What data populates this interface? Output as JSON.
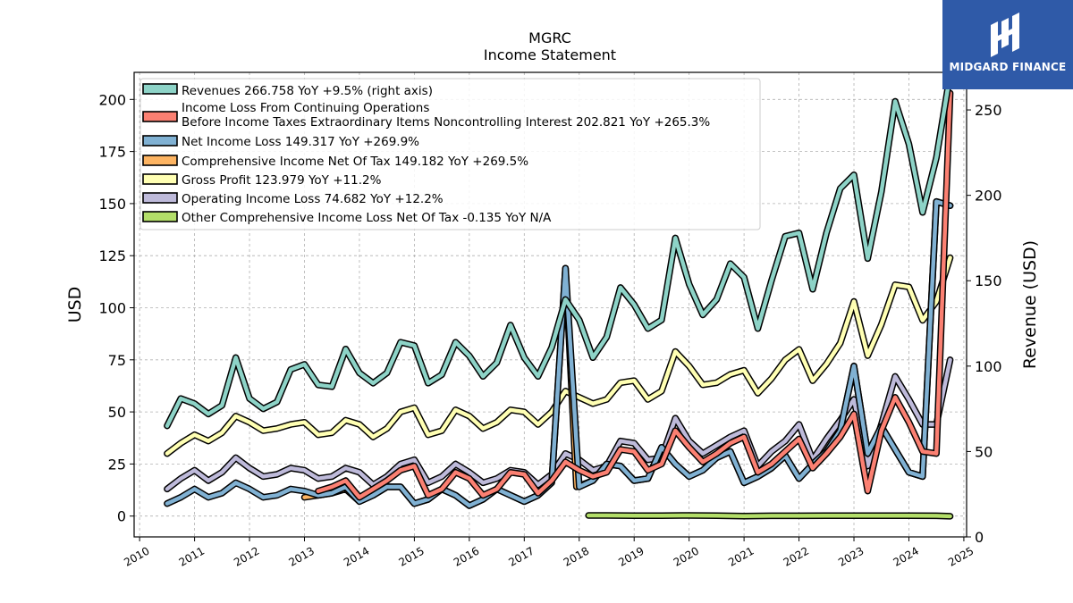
{
  "chart_data": {
    "type": "line",
    "title": "MGRC",
    "subtitle": "Income Statement",
    "ylabel": "USD",
    "ylabel_right": "Revenue (USD)",
    "ylim": [
      -10,
      213
    ],
    "ylim_right": [
      0,
      272
    ],
    "xlim": [
      2009.9,
      2025.05
    ],
    "yticks": [
      0,
      25,
      50,
      75,
      100,
      125,
      150,
      175,
      200
    ],
    "yticks_right": [
      0,
      50,
      100,
      150,
      200,
      250
    ],
    "xticks": [
      2010,
      2011,
      2012,
      2013,
      2014,
      2015,
      2016,
      2017,
      2018,
      2019,
      2020,
      2021,
      2022,
      2023,
      2024,
      2025
    ],
    "grid": true,
    "legend_position": "top-left",
    "series": [
      {
        "name": "Revenues",
        "legend": "Revenues  266.758 YoY +9.5% (right axis)",
        "color": "#8dd3c7",
        "axis": "right",
        "x": [
          2010.5,
          2010.75,
          2011.0,
          2011.25,
          2011.5,
          2011.75,
          2012.0,
          2012.25,
          2012.5,
          2012.75,
          2013.0,
          2013.25,
          2013.5,
          2013.75,
          2014.0,
          2014.25,
          2014.5,
          2014.75,
          2015.0,
          2015.25,
          2015.5,
          2015.75,
          2016.0,
          2016.25,
          2016.5,
          2016.75,
          2017.0,
          2017.25,
          2017.5,
          2017.75,
          2018.0,
          2018.25,
          2018.5,
          2018.75,
          2019.0,
          2019.25,
          2019.5,
          2019.75,
          2020.0,
          2020.25,
          2020.5,
          2020.75,
          2021.0,
          2021.25,
          2021.5,
          2021.75,
          2022.0,
          2022.25,
          2022.5,
          2022.75,
          2023.0,
          2023.25,
          2023.5,
          2023.75,
          2024.0,
          2024.25,
          2024.5,
          2024.75
        ],
        "values": [
          65,
          81,
          78,
          72,
          77,
          105,
          81,
          75,
          79,
          98,
          101,
          89,
          88,
          110,
          96,
          90,
          96,
          114,
          112,
          90,
          95,
          114,
          106,
          94,
          102,
          124,
          105,
          94,
          111,
          139,
          127,
          105,
          117,
          146,
          136,
          122,
          127,
          175,
          148,
          130,
          139,
          160,
          152,
          122,
          150,
          176,
          178,
          145,
          178,
          204,
          212,
          163,
          202,
          255,
          230,
          190,
          222,
          271
        ]
      },
      {
        "name": "Income Loss From Continuing Operations Before Income Taxes Extraordinary Items Noncontrolling Interest",
        "legend": "Income Loss From Continuing Operations\nBefore Income Taxes Extraordinary Items Noncontrolling Interest  202.821 YoY +265.3%",
        "color": "#fb8072",
        "axis": "left",
        "x": [
          2013.25,
          2013.5,
          2013.75,
          2014.0,
          2014.25,
          2014.5,
          2014.75,
          2015.0,
          2015.25,
          2015.5,
          2015.75,
          2016.0,
          2016.25,
          2016.5,
          2016.75,
          2017.0,
          2017.25,
          2017.5,
          2017.75,
          2018.0,
          2018.25,
          2018.5,
          2018.75,
          2019.0,
          2019.25,
          2019.5,
          2019.75,
          2020.0,
          2020.25,
          2020.5,
          2020.75,
          2021.0,
          2021.25,
          2021.5,
          2021.75,
          2022.0,
          2022.25,
          2022.5,
          2022.75,
          2023.0,
          2023.25,
          2023.5,
          2023.75,
          2024.0,
          2024.25,
          2024.5,
          2024.75
        ],
        "values": [
          12,
          14,
          17,
          9,
          13,
          17,
          22,
          24,
          10,
          13,
          21,
          18,
          10,
          13,
          21,
          20,
          11,
          17,
          26,
          22,
          19,
          21,
          32,
          31,
          22,
          25,
          41,
          33,
          26,
          30,
          35,
          38,
          21,
          25,
          31,
          37,
          23,
          30,
          38,
          49,
          12,
          41,
          57,
          45,
          31,
          30,
          203
        ]
      },
      {
        "name": "Net Income Loss",
        "legend": "Net Income Loss  149.317 YoY +269.9%",
        "color": "#80b1d3",
        "axis": "left",
        "x": [
          2010.5,
          2010.75,
          2011.0,
          2011.25,
          2011.5,
          2011.75,
          2012.0,
          2012.25,
          2012.5,
          2012.75,
          2013.0,
          2013.25,
          2013.5,
          2013.75,
          2014.0,
          2014.25,
          2014.5,
          2014.75,
          2015.0,
          2015.25,
          2015.5,
          2015.75,
          2016.0,
          2016.25,
          2016.5,
          2016.75,
          2017.0,
          2017.25,
          2017.5,
          2017.75,
          2018.0,
          2018.25,
          2018.5,
          2018.75,
          2019.0,
          2019.25,
          2019.5,
          2019.75,
          2020.0,
          2020.25,
          2020.5,
          2020.75,
          2021.0,
          2021.25,
          2021.5,
          2021.75,
          2022.0,
          2022.25,
          2022.5,
          2022.75,
          2023.0,
          2023.25,
          2023.5,
          2023.75,
          2024.0,
          2024.25,
          2024.5,
          2024.75
        ],
        "values": [
          6,
          9,
          13,
          9,
          11,
          16,
          13,
          9,
          10,
          13,
          12,
          10,
          11,
          14,
          7,
          10,
          14,
          14,
          6,
          8,
          13,
          10,
          5,
          8,
          13,
          10,
          7,
          10,
          16,
          119,
          14,
          17,
          25,
          24,
          17,
          18,
          33,
          25,
          19,
          22,
          28,
          31,
          16,
          19,
          23,
          29,
          18,
          25,
          31,
          41,
          72,
          30,
          43,
          32,
          21,
          19,
          151,
          149
        ]
      },
      {
        "name": "Comprehensive Income Net Of Tax",
        "legend": "Comprehensive Income Net Of Tax  149.182 YoY +269.5%",
        "color": "#fdb462",
        "axis": "left",
        "x": [
          2013.0,
          2013.25,
          2013.5,
          2013.75,
          2014.0,
          2014.25,
          2014.5,
          2014.75,
          2015.0,
          2015.25,
          2015.5,
          2015.75,
          2016.0,
          2016.25,
          2016.5,
          2016.75,
          2017.0,
          2017.25,
          2017.5,
          2017.75,
          2017.95,
          2018.25,
          2018.5,
          2018.75,
          2019.0,
          2019.25,
          2019.5,
          2019.75,
          2020.0,
          2020.25,
          2020.5,
          2020.75,
          2021.0,
          2021.25,
          2021.5,
          2021.75,
          2022.0,
          2022.25,
          2022.5,
          2022.75,
          2023.0,
          2023.25,
          2023.5,
          2023.75,
          2024.0,
          2024.25,
          2024.5,
          2024.75
        ],
        "values": [
          9,
          10,
          11,
          13,
          7,
          10,
          14,
          14,
          6,
          8,
          13,
          10,
          5,
          8,
          13,
          10,
          7,
          10,
          16,
          119,
          14,
          17,
          25,
          24,
          17,
          18,
          33,
          25,
          19,
          22,
          28,
          31,
          16,
          19,
          23,
          29,
          18,
          25,
          31,
          41,
          72,
          30,
          43,
          32,
          21,
          19,
          151,
          149
        ]
      },
      {
        "name": "Gross Profit",
        "legend": "Gross Profit  123.979 YoY +11.2%",
        "color": "#ffffb3",
        "axis": "left",
        "x": [
          2010.5,
          2010.75,
          2011.0,
          2011.25,
          2011.5,
          2011.75,
          2012.0,
          2012.25,
          2012.5,
          2012.75,
          2013.0,
          2013.25,
          2013.5,
          2013.75,
          2014.0,
          2014.25,
          2014.5,
          2014.75,
          2015.0,
          2015.25,
          2015.5,
          2015.75,
          2016.0,
          2016.25,
          2016.5,
          2016.75,
          2017.0,
          2017.25,
          2017.5,
          2017.75,
          2018.0,
          2018.25,
          2018.5,
          2018.75,
          2019.0,
          2019.25,
          2019.5,
          2019.75,
          2020.0,
          2020.25,
          2020.5,
          2020.75,
          2021.0,
          2021.25,
          2021.5,
          2021.75,
          2022.0,
          2022.25,
          2022.5,
          2022.75,
          2023.0,
          2023.25,
          2023.5,
          2023.75,
          2024.0,
          2024.25,
          2024.5,
          2024.75
        ],
        "values": [
          30,
          35,
          39,
          36,
          40,
          48,
          45,
          41,
          42,
          44,
          45,
          39,
          40,
          46,
          44,
          38,
          42,
          50,
          52,
          39,
          41,
          51,
          48,
          42,
          45,
          51,
          50,
          44,
          50,
          60,
          57,
          54,
          56,
          64,
          65,
          56,
          60,
          79,
          72,
          63,
          64,
          68,
          70,
          59,
          66,
          75,
          80,
          65,
          73,
          83,
          103,
          77,
          92,
          111,
          110,
          94,
          103,
          124
        ]
      },
      {
        "name": "Operating Income Loss",
        "legend": "Operating Income Loss  74.682 YoY +12.2%",
        "color": "#bebada",
        "axis": "left",
        "x": [
          2010.5,
          2010.75,
          2011.0,
          2011.25,
          2011.5,
          2011.75,
          2012.0,
          2012.25,
          2012.5,
          2012.75,
          2013.0,
          2013.25,
          2013.5,
          2013.75,
          2014.0,
          2014.25,
          2014.5,
          2014.75,
          2015.0,
          2015.25,
          2015.5,
          2015.75,
          2016.0,
          2016.25,
          2016.5,
          2016.75,
          2017.0,
          2017.25,
          2017.5,
          2017.75,
          2018.0,
          2018.25,
          2018.5,
          2018.75,
          2019.0,
          2019.25,
          2019.5,
          2019.75,
          2020.0,
          2020.25,
          2020.5,
          2020.75,
          2021.0,
          2021.25,
          2021.5,
          2021.75,
          2022.0,
          2022.25,
          2022.5,
          2022.75,
          2023.0,
          2023.25,
          2023.5,
          2023.75,
          2024.0,
          2024.25,
          2024.5,
          2024.75
        ],
        "values": [
          13,
          18,
          22,
          17,
          21,
          28,
          23,
          19,
          20,
          23,
          22,
          18,
          19,
          23,
          21,
          15,
          19,
          25,
          27,
          16,
          19,
          25,
          21,
          16,
          18,
          22,
          21,
          15,
          20,
          30,
          27,
          22,
          24,
          36,
          35,
          27,
          28,
          47,
          36,
          30,
          34,
          38,
          41,
          24,
          31,
          36,
          44,
          27,
          37,
          46,
          56,
          24,
          44,
          67,
          56,
          44,
          44,
          75
        ]
      },
      {
        "name": "Other Comprehensive Income Loss Net Of Tax",
        "legend": "Other Comprehensive Income Loss Net Of Tax  -0.135 YoY N/A",
        "color": "#b3de69",
        "axis": "left",
        "x": [
          2018.17,
          2018.5,
          2019.0,
          2019.5,
          2020.0,
          2020.5,
          2021.0,
          2021.5,
          2022.0,
          2022.5,
          2023.0,
          2023.5,
          2024.0,
          2024.5,
          2024.75
        ],
        "values": [
          0.3,
          0.3,
          0.2,
          0.2,
          0.3,
          0.2,
          0.0,
          0.1,
          0.1,
          0.2,
          0.2,
          0.2,
          0.2,
          0.1,
          -0.1
        ]
      }
    ]
  },
  "logo": {
    "text": "MIDGARD FINANCE"
  }
}
